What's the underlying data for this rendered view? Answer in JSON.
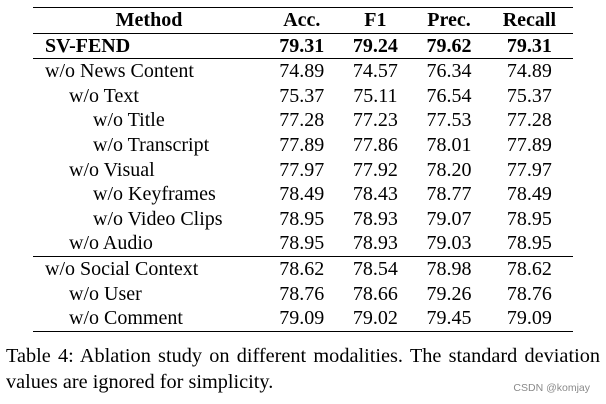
{
  "table": {
    "headers": [
      "Method",
      "Acc.",
      "F1",
      "Prec.",
      "Recall"
    ],
    "rows": [
      {
        "method": "SV-FEND",
        "level": 0,
        "bold": true,
        "values": [
          "79.31",
          "79.24",
          "79.62",
          "79.31"
        ]
      },
      {
        "method": "w/o News Content",
        "level": 0,
        "values": [
          "74.89",
          "74.57",
          "76.34",
          "74.89"
        ]
      },
      {
        "method": "w/o Text",
        "level": 1,
        "values": [
          "75.37",
          "75.11",
          "76.54",
          "75.37"
        ]
      },
      {
        "method": "w/o Title",
        "level": 2,
        "values": [
          "77.28",
          "77.23",
          "77.53",
          "77.28"
        ]
      },
      {
        "method": "w/o Transcript",
        "level": 2,
        "values": [
          "77.89",
          "77.86",
          "78.01",
          "77.89"
        ]
      },
      {
        "method": "w/o Visual",
        "level": 1,
        "values": [
          "77.97",
          "77.92",
          "78.20",
          "77.97"
        ]
      },
      {
        "method": "w/o Keyframes",
        "level": 2,
        "values": [
          "78.49",
          "78.43",
          "78.77",
          "78.49"
        ]
      },
      {
        "method": "w/o Video Clips",
        "level": 2,
        "values": [
          "78.95",
          "78.93",
          "79.07",
          "78.95"
        ]
      },
      {
        "method": "w/o Audio",
        "level": 1,
        "values": [
          "78.95",
          "78.93",
          "79.03",
          "78.95"
        ]
      },
      {
        "method": "w/o Social Context",
        "level": 0,
        "values": [
          "78.62",
          "78.54",
          "78.98",
          "78.62"
        ]
      },
      {
        "method": "w/o User",
        "level": 1,
        "values": [
          "78.76",
          "78.66",
          "79.26",
          "78.76"
        ]
      },
      {
        "method": "w/o Comment",
        "level": 1,
        "values": [
          "79.09",
          "79.02",
          "79.45",
          "79.09"
        ]
      }
    ]
  },
  "caption": "Table 4: Ablation study on different modalities. The standard deviation values are ignored for simplicity.",
  "watermark": "CSDN @komjay"
}
